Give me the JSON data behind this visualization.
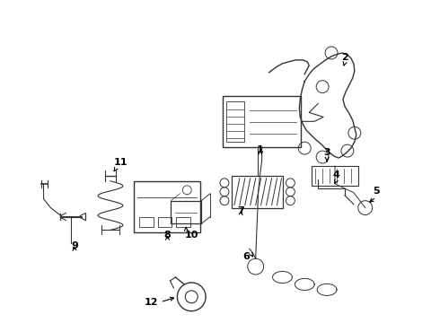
{
  "background_color": "#ffffff",
  "line_color": "#333333",
  "text_color": "#000000",
  "figure_width": 4.9,
  "figure_height": 3.6,
  "dpi": 100
}
